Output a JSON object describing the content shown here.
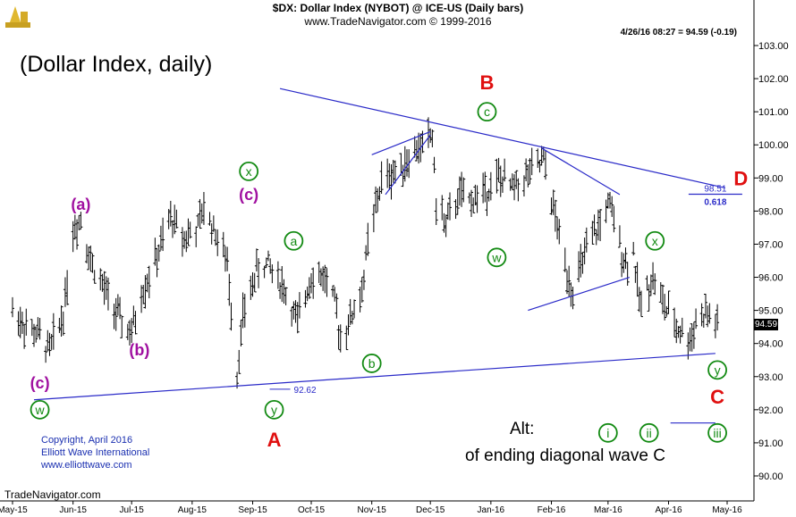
{
  "header": {
    "title": "$DX:  Dollar Index (NYBOT) @ ICE-US  (Daily bars)",
    "subtitle": "www.TradeNavigator.com © 1999-2016",
    "quote": "4/26/16 08:27 = 94.59 (-0.19)"
  },
  "chart_title": "(Dollar Index, daily)",
  "footer": {
    "copyright": [
      "Copyright, April 2016",
      "Elliott Wave International",
      "www.elliottwave.com"
    ],
    "vendor": "TradeNavigator.com",
    "alt_label": "Alt:",
    "alt_desc": "of ending diagonal wave C"
  },
  "last_price_tag": "94.59",
  "colors": {
    "bars": "#000000",
    "trendlines": "#2a2ac8",
    "major_waves": "#e01010",
    "minor_waves": "#a010a0",
    "circled_waves": "#128a12",
    "copyright": "#1a2fb0"
  },
  "chart_data": {
    "type": "ohlc",
    "x_tick_labels": [
      "May-15",
      "Jun-15",
      "Jul-15",
      "Aug-15",
      "Sep-15",
      "Oct-15",
      "Nov-15",
      "Dec-15",
      "Jan-16",
      "Feb-16",
      "Mar-16",
      "Apr-16",
      "May-16"
    ],
    "y_range": [
      89.6,
      103.3
    ],
    "y_tick_labels": [
      "103.00",
      "102.00",
      "101.00",
      "100.00",
      "99.00",
      "98.00",
      "97.00",
      "96.00",
      "95.00",
      "94.00",
      "93.00",
      "92.00",
      "91.00",
      "90.00"
    ],
    "grid": false,
    "price_path": [
      [
        "2015-05-01",
        95.0
      ],
      [
        "2015-05-08",
        94.5
      ],
      [
        "2015-05-15",
        94.2
      ],
      [
        "2015-05-20",
        93.8
      ],
      [
        "2015-05-27",
        94.9
      ],
      [
        "2015-06-01",
        97.4
      ],
      [
        "2015-06-05",
        97.8
      ],
      [
        "2015-06-10",
        96.5
      ],
      [
        "2015-06-18",
        95.5
      ],
      [
        "2015-06-26",
        94.6
      ],
      [
        "2015-07-01",
        94.3
      ],
      [
        "2015-07-06",
        95.5
      ],
      [
        "2015-07-14",
        96.6
      ],
      [
        "2015-07-21",
        97.8
      ],
      [
        "2015-07-28",
        97.2
      ],
      [
        "2015-08-04",
        97.5
      ],
      [
        "2015-08-07",
        98.1
      ],
      [
        "2015-08-14",
        97.2
      ],
      [
        "2015-08-19",
        96.4
      ],
      [
        "2015-08-24",
        93.1
      ],
      [
        "2015-08-27",
        94.8
      ],
      [
        "2015-09-03",
        96.2
      ],
      [
        "2015-09-09",
        96.4
      ],
      [
        "2015-09-16",
        95.8
      ],
      [
        "2015-09-24",
        94.6
      ],
      [
        "2015-10-01",
        96.1
      ],
      [
        "2015-10-08",
        96.0
      ],
      [
        "2015-10-13",
        95.2
      ],
      [
        "2015-10-16",
        94.2
      ],
      [
        "2015-10-20",
        94.6
      ],
      [
        "2015-10-27",
        95.6
      ],
      [
        "2015-10-30",
        97.0
      ],
      [
        "2015-11-06",
        98.9
      ],
      [
        "2015-11-13",
        99.2
      ],
      [
        "2015-11-20",
        99.6
      ],
      [
        "2015-11-25",
        99.9
      ],
      [
        "2015-12-02",
        100.3
      ],
      [
        "2015-12-04",
        98.2
      ],
      [
        "2015-12-09",
        97.6
      ],
      [
        "2015-12-16",
        98.5
      ],
      [
        "2015-12-21",
        98.3
      ],
      [
        "2015-12-29",
        98.6
      ],
      [
        "2016-01-05",
        99.0
      ],
      [
        "2016-01-12",
        98.7
      ],
      [
        "2016-01-20",
        99.1
      ],
      [
        "2016-01-28",
        99.5
      ],
      [
        "2016-02-03",
        97.8
      ],
      [
        "2016-02-08",
        96.4
      ],
      [
        "2016-02-12",
        95.6
      ],
      [
        "2016-02-19",
        96.8
      ],
      [
        "2016-02-25",
        97.5
      ],
      [
        "2016-03-01",
        98.2
      ],
      [
        "2016-03-03",
        97.9
      ],
      [
        "2016-03-10",
        96.4
      ],
      [
        "2016-03-14",
        96.8
      ],
      [
        "2016-03-17",
        95.2
      ],
      [
        "2016-03-24",
        96.0
      ],
      [
        "2016-03-30",
        95.1
      ],
      [
        "2016-04-05",
        94.5
      ],
      [
        "2016-04-12",
        94.1
      ],
      [
        "2016-04-15",
        94.7
      ],
      [
        "2016-04-20",
        94.9
      ],
      [
        "2016-04-26",
        94.59
      ]
    ],
    "trendlines": [
      {
        "from": [
          "2015-05-12",
          92.3
        ],
        "to": [
          "2016-04-25",
          93.7
        ]
      },
      {
        "from": [
          "2015-09-15",
          101.7
        ],
        "to": [
          "2016-04-30",
          98.7
        ]
      },
      {
        "from": [
          "2015-11-01",
          99.7
        ],
        "to": [
          "2015-12-01",
          100.4
        ]
      },
      {
        "from": [
          "2015-11-08",
          98.5
        ],
        "to": [
          "2015-12-01",
          100.3
        ]
      },
      {
        "from": [
          "2016-01-27",
          99.9
        ],
        "to": [
          "2016-03-07",
          98.5
        ]
      },
      {
        "from": [
          "2016-01-20",
          95.0
        ],
        "to": [
          "2016-03-12",
          96.0
        ]
      },
      {
        "from": [
          "2016-04-02",
          91.6
        ],
        "to": [
          "2016-04-25",
          91.6
        ]
      }
    ],
    "level_marks": [
      {
        "date": "2016-04-25",
        "price": 98.51,
        "label": "98.51",
        "sub_label": "0.618"
      },
      {
        "date": "2015-09-12",
        "price": 92.62,
        "label": "92.62"
      }
    ],
    "wave_labels": [
      {
        "text": "(a)",
        "date": "2015-06-05",
        "price": 98.2,
        "style": "minor"
      },
      {
        "text": "(b)",
        "date": "2015-07-05",
        "price": 93.8,
        "style": "minor"
      },
      {
        "text": "(c)",
        "date": "2015-05-15",
        "price": 92.8,
        "style": "minor"
      },
      {
        "text": "w",
        "date": "2015-05-15",
        "price": 92.0,
        "style": "circled"
      },
      {
        "text": "x",
        "date": "2015-08-30",
        "price": 99.2,
        "style": "circled"
      },
      {
        "text": "(c)",
        "date": "2015-08-30",
        "price": 98.5,
        "style": "minor"
      },
      {
        "text": "a",
        "date": "2015-09-22",
        "price": 97.1,
        "style": "circled"
      },
      {
        "text": "y",
        "date": "2015-09-12",
        "price": 92.0,
        "style": "circled"
      },
      {
        "text": "A",
        "date": "2015-09-12",
        "price": 91.1,
        "style": "major"
      },
      {
        "text": "b",
        "date": "2015-11-01",
        "price": 93.4,
        "style": "circled"
      },
      {
        "text": "B",
        "date": "2015-12-30",
        "price": 101.9,
        "style": "major"
      },
      {
        "text": "c",
        "date": "2015-12-30",
        "price": 101.0,
        "style": "circled"
      },
      {
        "text": "w",
        "date": "2016-01-04",
        "price": 96.6,
        "style": "circled"
      },
      {
        "text": "x",
        "date": "2016-03-25",
        "price": 97.1,
        "style": "circled"
      },
      {
        "text": "y",
        "date": "2016-04-26",
        "price": 93.2,
        "style": "circled"
      },
      {
        "text": "C",
        "date": "2016-04-26",
        "price": 92.4,
        "style": "major"
      },
      {
        "text": "D",
        "date": "2016-05-08",
        "price": 99.0,
        "style": "major"
      },
      {
        "text": "i",
        "date": "2016-03-01",
        "price": 91.3,
        "style": "circled"
      },
      {
        "text": "ii",
        "date": "2016-03-22",
        "price": 91.3,
        "style": "circled"
      },
      {
        "text": "iii",
        "date": "2016-04-26",
        "price": 91.3,
        "style": "circled"
      }
    ]
  }
}
